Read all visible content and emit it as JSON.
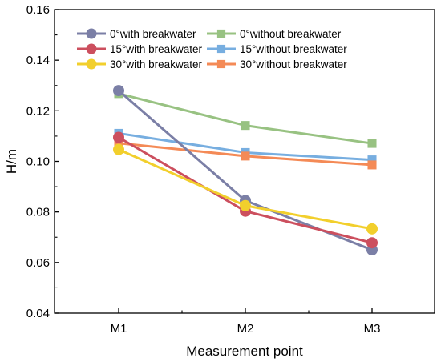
{
  "chart_data": {
    "type": "line",
    "categories": [
      "M1",
      "M2",
      "M3"
    ],
    "xlabel": "Measurement point",
    "ylabel": "H/m",
    "ylim": [
      0.04,
      0.16
    ],
    "yticks": [
      "0.04",
      "0.06",
      "0.08",
      "0.10",
      "0.12",
      "0.14",
      "0.16"
    ],
    "legend_placement": "top",
    "grid": false,
    "series": [
      {
        "name": "0°with breakwater",
        "values": [
          0.128,
          0.0845,
          0.065
        ],
        "color": "#7b7fa6",
        "marker": "circle"
      },
      {
        "name": "15°with breakwater",
        "values": [
          0.1095,
          0.0803,
          0.0678
        ],
        "color": "#cc4f5e",
        "marker": "circle"
      },
      {
        "name": "30°with breakwater",
        "values": [
          0.1047,
          0.0825,
          0.0733
        ],
        "color": "#f2cf2c",
        "marker": "circle"
      },
      {
        "name": "0°without breakwater",
        "values": [
          0.1268,
          0.1142,
          0.1071
        ],
        "color": "#98c282",
        "marker": "square"
      },
      {
        "name": "15°without breakwater",
        "values": [
          0.1111,
          0.1035,
          0.1006
        ],
        "color": "#77aee0",
        "marker": "square"
      },
      {
        "name": "30°without breakwater",
        "values": [
          0.1072,
          0.1021,
          0.0986
        ],
        "color": "#f48a56",
        "marker": "square"
      }
    ]
  }
}
